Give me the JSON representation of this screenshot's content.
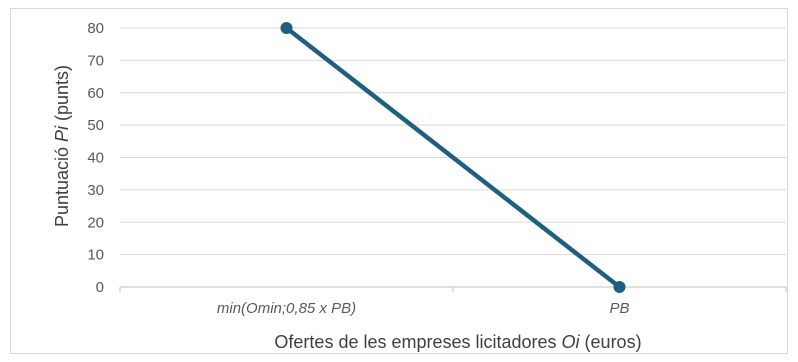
{
  "chart_data": {
    "type": "line",
    "categories": [
      "min(Omin;0,85 x PB)",
      "PB"
    ],
    "series": [
      {
        "values": [
          80,
          0
        ]
      }
    ],
    "xlabel": {
      "before": "Ofertes de les empreses licitadores ",
      "italic": "Oi",
      "after": " (euros)"
    },
    "ylabel": {
      "before": "Puntuació ",
      "italic": "Pi",
      "after": " (punts)"
    },
    "yticks": [
      "0",
      "10",
      "20",
      "30",
      "40",
      "50",
      "60",
      "70",
      "80"
    ],
    "ylim": [
      0,
      80
    ],
    "grid": true,
    "line_color": "#1f5f7f",
    "legend": "none"
  }
}
